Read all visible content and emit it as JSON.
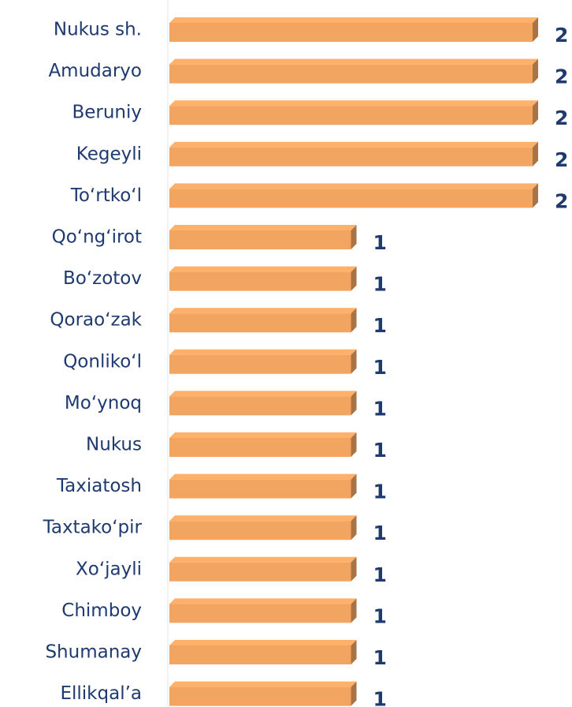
{
  "chart_data": {
    "type": "bar",
    "orientation": "horizontal",
    "categories": [
      "Nukus sh.",
      "Amudaryo",
      "Beruniy",
      "Kegeyli",
      "To‘rtko‘l",
      "Qo‘ng‘irot",
      "Bo‘zotov",
      "Qorao‘zak",
      "Qonliko‘l",
      "Mo‘ynoq",
      "Nukus",
      "Taxiatosh",
      "Taxtako‘pir",
      "Xo‘jayli",
      "Chimboy",
      "Shumanay",
      "Ellikqal’a"
    ],
    "values": [
      2,
      2,
      2,
      2,
      2,
      1,
      1,
      1,
      1,
      1,
      1,
      1,
      1,
      1,
      1,
      1,
      1
    ],
    "color": "#f2a461",
    "xlim": [
      0,
      2
    ]
  }
}
